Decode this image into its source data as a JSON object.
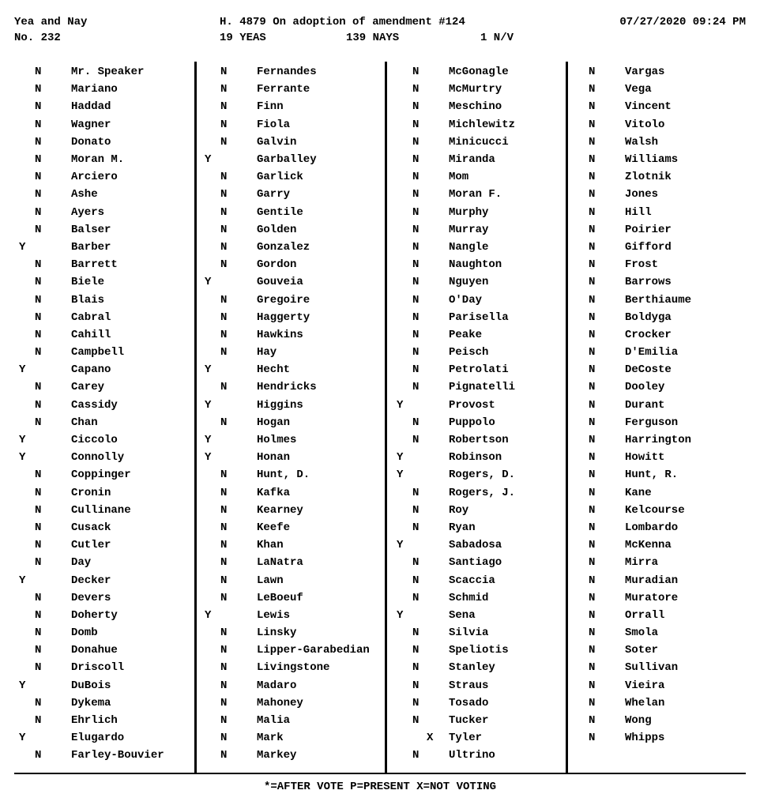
{
  "header": {
    "left": "Yea and Nay",
    "title": "H. 4879 On adoption of amendment #124",
    "datetime": "07/27/2020 09:24 PM",
    "roll_no": "No. 232",
    "yeas": "19 YEAS",
    "nays": "139 NAYS",
    "nv": "1 N/V"
  },
  "footer": "*=AFTER VOTE   P=PRESENT   X=NOT VOTING",
  "columns": [
    [
      {
        "v": "N",
        "n": "Mr. Speaker"
      },
      {
        "v": "N",
        "n": "Mariano"
      },
      {
        "v": "N",
        "n": "Haddad"
      },
      {
        "v": "N",
        "n": "Wagner"
      },
      {
        "v": "N",
        "n": "Donato"
      },
      {
        "v": "N",
        "n": "Moran M."
      },
      {
        "v": "N",
        "n": "Arciero"
      },
      {
        "v": "N",
        "n": "Ashe"
      },
      {
        "v": "N",
        "n": "Ayers"
      },
      {
        "v": "N",
        "n": "Balser"
      },
      {
        "v": "Y",
        "n": "Barber"
      },
      {
        "v": "N",
        "n": "Barrett"
      },
      {
        "v": "N",
        "n": "Biele"
      },
      {
        "v": "N",
        "n": "Blais"
      },
      {
        "v": "N",
        "n": "Cabral"
      },
      {
        "v": "N",
        "n": "Cahill"
      },
      {
        "v": "N",
        "n": "Campbell"
      },
      {
        "v": "Y",
        "n": "Capano"
      },
      {
        "v": "N",
        "n": "Carey"
      },
      {
        "v": "N",
        "n": "Cassidy"
      },
      {
        "v": "N",
        "n": "Chan"
      },
      {
        "v": "Y",
        "n": "Ciccolo"
      },
      {
        "v": "Y",
        "n": "Connolly"
      },
      {
        "v": "N",
        "n": "Coppinger"
      },
      {
        "v": "N",
        "n": "Cronin"
      },
      {
        "v": "N",
        "n": "Cullinane"
      },
      {
        "v": "N",
        "n": "Cusack"
      },
      {
        "v": "N",
        "n": "Cutler"
      },
      {
        "v": "N",
        "n": "Day"
      },
      {
        "v": "Y",
        "n": "Decker"
      },
      {
        "v": "N",
        "n": "Devers"
      },
      {
        "v": "N",
        "n": "Doherty"
      },
      {
        "v": "N",
        "n": "Domb"
      },
      {
        "v": "N",
        "n": "Donahue"
      },
      {
        "v": "N",
        "n": "Driscoll"
      },
      {
        "v": "Y",
        "n": "DuBois"
      },
      {
        "v": "N",
        "n": "Dykema"
      },
      {
        "v": "N",
        "n": "Ehrlich"
      },
      {
        "v": "Y",
        "n": "Elugardo"
      },
      {
        "v": "N",
        "n": "Farley-Bouvier"
      }
    ],
    [
      {
        "v": "N",
        "n": "Fernandes"
      },
      {
        "v": "N",
        "n": "Ferrante"
      },
      {
        "v": "N",
        "n": "Finn"
      },
      {
        "v": "N",
        "n": "Fiola"
      },
      {
        "v": "N",
        "n": "Galvin"
      },
      {
        "v": "Y",
        "n": "Garballey"
      },
      {
        "v": "N",
        "n": "Garlick"
      },
      {
        "v": "N",
        "n": "Garry"
      },
      {
        "v": "N",
        "n": "Gentile"
      },
      {
        "v": "N",
        "n": "Golden"
      },
      {
        "v": "N",
        "n": "Gonzalez"
      },
      {
        "v": "N",
        "n": "Gordon"
      },
      {
        "v": "Y",
        "n": "Gouveia"
      },
      {
        "v": "N",
        "n": "Gregoire"
      },
      {
        "v": "N",
        "n": "Haggerty"
      },
      {
        "v": "N",
        "n": "Hawkins"
      },
      {
        "v": "N",
        "n": "Hay"
      },
      {
        "v": "Y",
        "n": "Hecht"
      },
      {
        "v": "N",
        "n": "Hendricks"
      },
      {
        "v": "Y",
        "n": "Higgins"
      },
      {
        "v": "N",
        "n": "Hogan"
      },
      {
        "v": "Y",
        "n": "Holmes"
      },
      {
        "v": "Y",
        "n": "Honan"
      },
      {
        "v": "N",
        "n": "Hunt, D."
      },
      {
        "v": "N",
        "n": "Kafka"
      },
      {
        "v": "N",
        "n": "Kearney"
      },
      {
        "v": "N",
        "n": "Keefe"
      },
      {
        "v": "N",
        "n": "Khan"
      },
      {
        "v": "N",
        "n": "LaNatra"
      },
      {
        "v": "N",
        "n": "Lawn"
      },
      {
        "v": "N",
        "n": "LeBoeuf"
      },
      {
        "v": "Y",
        "n": "Lewis"
      },
      {
        "v": "N",
        "n": "Linsky"
      },
      {
        "v": "N",
        "n": "Lipper-Garabedian"
      },
      {
        "v": "N",
        "n": "Livingstone"
      },
      {
        "v": "N",
        "n": "Madaro"
      },
      {
        "v": "N",
        "n": "Mahoney"
      },
      {
        "v": "N",
        "n": "Malia"
      },
      {
        "v": "N",
        "n": "Mark"
      },
      {
        "v": "N",
        "n": "Markey"
      }
    ],
    [
      {
        "v": "N",
        "n": "McGonagle"
      },
      {
        "v": "N",
        "n": "McMurtry"
      },
      {
        "v": "N",
        "n": "Meschino"
      },
      {
        "v": "N",
        "n": "Michlewitz"
      },
      {
        "v": "N",
        "n": "Minicucci"
      },
      {
        "v": "N",
        "n": "Miranda"
      },
      {
        "v": "N",
        "n": "Mom"
      },
      {
        "v": "N",
        "n": "Moran F."
      },
      {
        "v": "N",
        "n": "Murphy"
      },
      {
        "v": "N",
        "n": "Murray"
      },
      {
        "v": "N",
        "n": "Nangle"
      },
      {
        "v": "N",
        "n": "Naughton"
      },
      {
        "v": "N",
        "n": "Nguyen"
      },
      {
        "v": "N",
        "n": "O'Day"
      },
      {
        "v": "N",
        "n": "Parisella"
      },
      {
        "v": "N",
        "n": "Peake"
      },
      {
        "v": "N",
        "n": "Peisch"
      },
      {
        "v": "N",
        "n": "Petrolati"
      },
      {
        "v": "N",
        "n": "Pignatelli"
      },
      {
        "v": "Y",
        "n": "Provost"
      },
      {
        "v": "N",
        "n": "Puppolo"
      },
      {
        "v": "N",
        "n": "Robertson"
      },
      {
        "v": "Y",
        "n": "Robinson"
      },
      {
        "v": "Y",
        "n": "Rogers, D."
      },
      {
        "v": "N",
        "n": "Rogers, J."
      },
      {
        "v": "N",
        "n": "Roy"
      },
      {
        "v": "N",
        "n": "Ryan"
      },
      {
        "v": "Y",
        "n": "Sabadosa"
      },
      {
        "v": "N",
        "n": "Santiago"
      },
      {
        "v": "N",
        "n": "Scaccia"
      },
      {
        "v": "N",
        "n": "Schmid"
      },
      {
        "v": "Y",
        "n": "Sena"
      },
      {
        "v": "N",
        "n": "Silvia"
      },
      {
        "v": "N",
        "n": "Speliotis"
      },
      {
        "v": "N",
        "n": "Stanley"
      },
      {
        "v": "N",
        "n": "Straus"
      },
      {
        "v": "N",
        "n": "Tosado"
      },
      {
        "v": "N",
        "n": "Tucker"
      },
      {
        "v": "X",
        "n": "Tyler"
      },
      {
        "v": "N",
        "n": "Ultrino"
      }
    ],
    [
      {
        "v": "N",
        "n": "Vargas"
      },
      {
        "v": "N",
        "n": "Vega"
      },
      {
        "v": "N",
        "n": "Vincent"
      },
      {
        "v": "N",
        "n": "Vitolo"
      },
      {
        "v": "N",
        "n": "Walsh"
      },
      {
        "v": "N",
        "n": "Williams"
      },
      {
        "v": "N",
        "n": "Zlotnik"
      },
      {
        "v": "N",
        "n": "Jones"
      },
      {
        "v": "N",
        "n": "Hill"
      },
      {
        "v": "N",
        "n": "Poirier"
      },
      {
        "v": "N",
        "n": "Gifford"
      },
      {
        "v": "N",
        "n": "Frost"
      },
      {
        "v": "N",
        "n": "Barrows"
      },
      {
        "v": "N",
        "n": "Berthiaume"
      },
      {
        "v": "N",
        "n": "Boldyga"
      },
      {
        "v": "N",
        "n": "Crocker"
      },
      {
        "v": "N",
        "n": "D'Emilia"
      },
      {
        "v": "N",
        "n": "DeCoste"
      },
      {
        "v": "N",
        "n": "Dooley"
      },
      {
        "v": "N",
        "n": "Durant"
      },
      {
        "v": "N",
        "n": "Ferguson"
      },
      {
        "v": "N",
        "n": "Harrington"
      },
      {
        "v": "N",
        "n": "Howitt"
      },
      {
        "v": "N",
        "n": "Hunt, R."
      },
      {
        "v": "N",
        "n": "Kane"
      },
      {
        "v": "N",
        "n": "Kelcourse"
      },
      {
        "v": "N",
        "n": "Lombardo"
      },
      {
        "v": "N",
        "n": "McKenna"
      },
      {
        "v": "N",
        "n": "Mirra"
      },
      {
        "v": "N",
        "n": "Muradian"
      },
      {
        "v": "N",
        "n": "Muratore"
      },
      {
        "v": "N",
        "n": "Orrall"
      },
      {
        "v": "N",
        "n": "Smola"
      },
      {
        "v": "N",
        "n": "Soter"
      },
      {
        "v": "N",
        "n": "Sullivan"
      },
      {
        "v": "N",
        "n": "Vieira"
      },
      {
        "v": "N",
        "n": "Whelan"
      },
      {
        "v": "N",
        "n": "Wong"
      },
      {
        "v": "N",
        "n": "Whipps"
      }
    ]
  ]
}
